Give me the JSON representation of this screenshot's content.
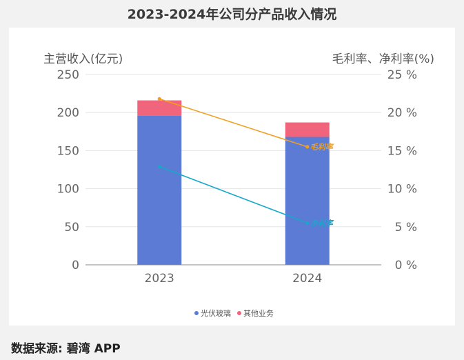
{
  "title": "2023-2024年公司分产品收入情况",
  "source": "数据来源: 碧湾 APP",
  "chart_data": {
    "type": "bar",
    "stacked": true,
    "categories": [
      "2023",
      "2024"
    ],
    "series": [
      {
        "name": "光伏玻璃",
        "values": [
          196,
          168
        ],
        "color": "#5b7bd5"
      },
      {
        "name": "其他业务",
        "values": [
          20,
          19
        ],
        "color": "#f0647c"
      }
    ],
    "line_series": [
      {
        "name": "毛利率",
        "values": [
          21.8,
          15.5
        ],
        "color": "#f0a020",
        "label": "毛利率"
      },
      {
        "name": "净利率",
        "values": [
          12.9,
          5.5
        ],
        "color": "#17a8c8",
        "label": "净利率"
      }
    ],
    "ylabel_left": "主营收入(亿元)",
    "ylabel_right": "毛利率、净利率(%)",
    "ylim_left": [
      0,
      250
    ],
    "ylim_right": [
      0,
      25
    ],
    "yticks_left": [
      "0",
      "50",
      "100",
      "150",
      "200",
      "250"
    ],
    "yticks_right": [
      "0 %",
      "5 %",
      "10 %",
      "15 %",
      "20 %",
      "25 %"
    ],
    "legend": [
      "光伏玻璃",
      "其他业务"
    ],
    "legend_position": "bottom-center",
    "grid": true
  }
}
